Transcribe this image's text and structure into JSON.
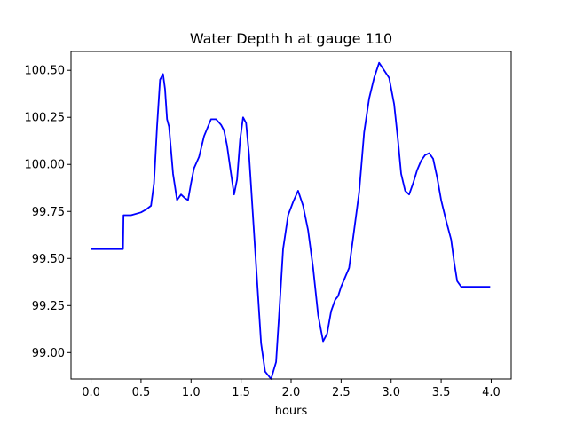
{
  "chart_data": {
    "type": "line",
    "title": "Water Depth h at gauge 110",
    "xlabel": "hours",
    "ylabel": "",
    "xlim": [
      -0.2,
      4.2
    ],
    "ylim": [
      98.86,
      100.6
    ],
    "xticks": [
      0.0,
      0.5,
      1.0,
      1.5,
      2.0,
      2.5,
      3.0,
      3.5,
      4.0
    ],
    "xtick_labels": [
      "0.0",
      "0.5",
      "1.0",
      "1.5",
      "2.0",
      "2.5",
      "3.0",
      "3.5",
      "4.0"
    ],
    "yticks": [
      99.0,
      99.25,
      99.5,
      99.75,
      100.0,
      100.25,
      100.5
    ],
    "ytick_labels": [
      "99.00",
      "99.25",
      "99.50",
      "99.75",
      "100.00",
      "100.25",
      "100.50"
    ],
    "grid": false,
    "series": [
      {
        "color": "#0000ff",
        "x": [
          0.0,
          0.1,
          0.2,
          0.32,
          0.325,
          0.33,
          0.4,
          0.5,
          0.55,
          0.6,
          0.63,
          0.66,
          0.69,
          0.72,
          0.74,
          0.76,
          0.78,
          0.82,
          0.86,
          0.9,
          0.94,
          0.97,
          1.0,
          1.03,
          1.08,
          1.13,
          1.2,
          1.25,
          1.3,
          1.33,
          1.36,
          1.4,
          1.43,
          1.46,
          1.49,
          1.52,
          1.55,
          1.58,
          1.61,
          1.64,
          1.67,
          1.7,
          1.74,
          1.8,
          1.85,
          1.88,
          1.92,
          1.97,
          2.02,
          2.07,
          2.12,
          2.17,
          2.22,
          2.27,
          2.32,
          2.36,
          2.4,
          2.44,
          2.47,
          2.5,
          2.54,
          2.58,
          2.63,
          2.68,
          2.73,
          2.78,
          2.83,
          2.88,
          2.93,
          2.98,
          3.03,
          3.07,
          3.1,
          3.14,
          3.18,
          3.22,
          3.26,
          3.3,
          3.34,
          3.38,
          3.42,
          3.46,
          3.5,
          3.55,
          3.6,
          3.63,
          3.66,
          3.7,
          3.75,
          3.8,
          3.85,
          3.9,
          3.95,
          3.99
        ],
        "y": [
          99.55,
          99.55,
          99.55,
          99.55,
          99.73,
          99.73,
          99.73,
          99.745,
          99.76,
          99.78,
          99.9,
          100.2,
          100.45,
          100.48,
          100.4,
          100.24,
          100.2,
          99.95,
          99.81,
          99.84,
          99.82,
          99.81,
          99.9,
          99.98,
          100.04,
          100.15,
          100.24,
          100.24,
          100.21,
          100.18,
          100.1,
          99.95,
          99.84,
          99.92,
          100.13,
          100.25,
          100.22,
          100.05,
          99.8,
          99.55,
          99.3,
          99.05,
          98.9,
          98.86,
          98.95,
          99.2,
          99.55,
          99.73,
          99.8,
          99.86,
          99.78,
          99.65,
          99.45,
          99.2,
          99.06,
          99.1,
          99.22,
          99.28,
          99.3,
          99.35,
          99.4,
          99.45,
          99.65,
          99.85,
          100.17,
          100.35,
          100.46,
          100.54,
          100.5,
          100.46,
          100.32,
          100.12,
          99.95,
          99.86,
          99.84,
          99.9,
          99.97,
          100.02,
          100.05,
          100.06,
          100.03,
          99.93,
          99.81,
          99.7,
          99.6,
          99.48,
          99.38,
          99.35,
          99.35,
          99.35,
          99.35,
          99.35,
          99.35,
          99.35
        ]
      }
    ]
  }
}
